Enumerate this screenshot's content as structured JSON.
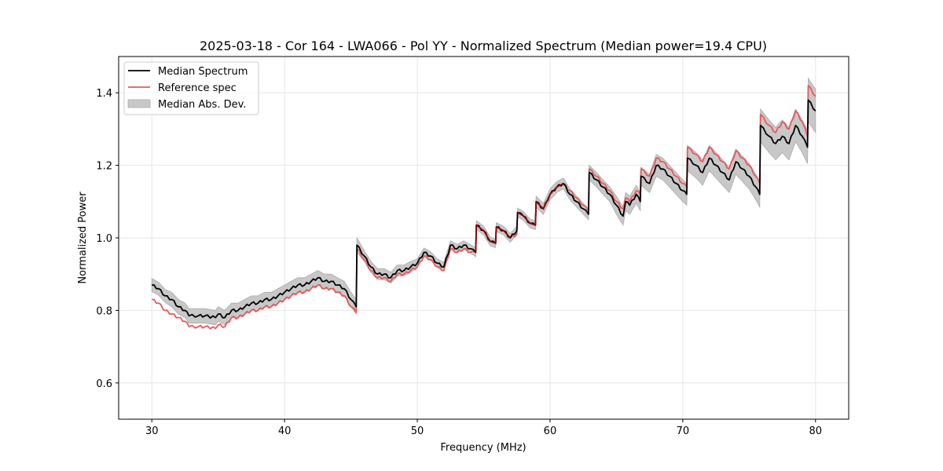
{
  "chart_data": {
    "type": "line",
    "title": "2025-03-18 - Cor 164 - LWA066 - Pol YY - Normalized Spectrum (Median power=19.4 CPU)",
    "xlabel": "Frequency (MHz)",
    "ylabel": "Normalized Power",
    "xlim": [
      27.5,
      82.5
    ],
    "ylim": [
      0.5,
      1.5
    ],
    "xticks": [
      30,
      40,
      50,
      60,
      70,
      80
    ],
    "xtick_labels": [
      "30",
      "40",
      "50",
      "60",
      "70",
      "80"
    ],
    "yticks": [
      0.6,
      0.8,
      1.0,
      1.2,
      1.4
    ],
    "ytick_labels": [
      "0.6",
      "0.8",
      "1.0",
      "1.2",
      "1.4"
    ],
    "grid": true,
    "legend_position": "top-left",
    "legend": [
      {
        "label": "Median Spectrum",
        "kind": "line",
        "color": "#000000"
      },
      {
        "label": "Reference spec",
        "kind": "line",
        "color": "#e8585a"
      },
      {
        "label": "Median Abs. Dev.",
        "kind": "band",
        "color": "#c8c8c8"
      }
    ],
    "series": [
      {
        "name": "Median Spectrum",
        "color": "#000000",
        "x": [
          30.0,
          30.5,
          31.0,
          31.5,
          32.0,
          32.5,
          32.8,
          33.5,
          34.0,
          34.8,
          35.0,
          35.5,
          36.0,
          36.5,
          37.0,
          37.5,
          38.0,
          38.5,
          39.0,
          39.5,
          40.0,
          40.5,
          41.0,
          41.5,
          42.0,
          42.5,
          43.0,
          43.5,
          44.0,
          44.5,
          45.0,
          45.4,
          45.45,
          46.0,
          46.5,
          47.0,
          47.5,
          48.0,
          48.5,
          49.0,
          49.5,
          50.0,
          50.5,
          51.0,
          51.5,
          52.0,
          52.5,
          53.0,
          53.5,
          54.0,
          54.4,
          54.45,
          55.0,
          55.5,
          55.9,
          55.95,
          56.5,
          57.0,
          57.5,
          57.55,
          58.0,
          58.5,
          58.9,
          58.95,
          59.5,
          60.0,
          60.5,
          61.0,
          61.5,
          62.0,
          62.5,
          62.9,
          62.95,
          63.5,
          64.0,
          64.5,
          65.0,
          65.5,
          65.7,
          66.0,
          66.5,
          66.8,
          66.85,
          67.5,
          68.0,
          68.5,
          69.0,
          69.5,
          70.0,
          70.3,
          70.35,
          71.0,
          71.5,
          72.0,
          72.5,
          73.0,
          73.5,
          74.0,
          74.5,
          75.0,
          75.5,
          75.8,
          75.85,
          76.5,
          77.0,
          77.5,
          78.0,
          78.5,
          79.0,
          79.4,
          79.45,
          80.0
        ],
        "y": [
          0.87,
          0.86,
          0.84,
          0.83,
          0.81,
          0.8,
          0.785,
          0.785,
          0.785,
          0.78,
          0.79,
          0.78,
          0.8,
          0.8,
          0.81,
          0.82,
          0.82,
          0.83,
          0.83,
          0.84,
          0.85,
          0.86,
          0.87,
          0.87,
          0.88,
          0.89,
          0.88,
          0.88,
          0.87,
          0.86,
          0.83,
          0.81,
          0.98,
          0.95,
          0.92,
          0.9,
          0.9,
          0.89,
          0.91,
          0.91,
          0.92,
          0.93,
          0.96,
          0.95,
          0.93,
          0.92,
          0.98,
          0.97,
          0.98,
          0.97,
          0.96,
          1.035,
          1.02,
          0.99,
          0.985,
          1.03,
          1.02,
          1.0,
          1.02,
          1.07,
          1.06,
          1.04,
          1.035,
          1.1,
          1.08,
          1.12,
          1.14,
          1.15,
          1.12,
          1.1,
          1.08,
          1.065,
          1.18,
          1.16,
          1.14,
          1.12,
          1.09,
          1.06,
          1.1,
          1.09,
          1.12,
          1.1,
          1.17,
          1.15,
          1.2,
          1.19,
          1.17,
          1.15,
          1.13,
          1.12,
          1.22,
          1.2,
          1.18,
          1.22,
          1.2,
          1.18,
          1.16,
          1.21,
          1.19,
          1.17,
          1.14,
          1.12,
          1.31,
          1.28,
          1.26,
          1.28,
          1.26,
          1.31,
          1.28,
          1.25,
          1.38,
          1.35
        ]
      },
      {
        "name": "Reference spec",
        "color": "#e8585a",
        "x": [
          30.0,
          30.5,
          31.0,
          31.5,
          32.0,
          32.5,
          32.8,
          33.5,
          34.0,
          34.8,
          35.0,
          35.5,
          36.0,
          36.5,
          37.0,
          37.5,
          38.0,
          38.5,
          39.0,
          39.5,
          40.0,
          40.5,
          41.0,
          41.5,
          42.0,
          42.5,
          43.0,
          43.5,
          44.0,
          44.5,
          45.0,
          45.4,
          45.45,
          46.0,
          46.5,
          47.0,
          47.5,
          48.0,
          48.5,
          49.0,
          49.5,
          50.0,
          50.5,
          51.0,
          51.5,
          52.0,
          52.5,
          53.0,
          53.5,
          54.0,
          54.4,
          54.45,
          55.0,
          55.5,
          55.9,
          55.95,
          56.5,
          57.0,
          57.5,
          57.55,
          58.0,
          58.5,
          58.9,
          58.95,
          59.5,
          60.0,
          60.5,
          61.0,
          61.5,
          62.0,
          62.5,
          62.9,
          62.95,
          63.5,
          64.0,
          64.5,
          65.0,
          65.5,
          65.7,
          66.0,
          66.5,
          66.8,
          66.85,
          67.5,
          68.0,
          68.5,
          69.0,
          69.5,
          70.0,
          70.3,
          70.35,
          71.0,
          71.5,
          72.0,
          72.5,
          73.0,
          73.5,
          74.0,
          74.5,
          75.0,
          75.5,
          75.8,
          75.85,
          76.5,
          77.0,
          77.5,
          78.0,
          78.5,
          79.0,
          79.4,
          79.45,
          80.0
        ],
        "y": [
          0.83,
          0.82,
          0.8,
          0.79,
          0.78,
          0.77,
          0.755,
          0.755,
          0.755,
          0.75,
          0.76,
          0.755,
          0.78,
          0.78,
          0.79,
          0.8,
          0.8,
          0.81,
          0.81,
          0.82,
          0.83,
          0.84,
          0.85,
          0.85,
          0.86,
          0.87,
          0.86,
          0.86,
          0.85,
          0.84,
          0.81,
          0.795,
          0.97,
          0.94,
          0.91,
          0.89,
          0.89,
          0.88,
          0.9,
          0.9,
          0.91,
          0.92,
          0.95,
          0.94,
          0.92,
          0.91,
          0.97,
          0.96,
          0.97,
          0.96,
          0.96,
          1.035,
          1.02,
          0.99,
          0.985,
          1.03,
          1.02,
          1.0,
          1.01,
          1.07,
          1.06,
          1.04,
          1.035,
          1.1,
          1.08,
          1.12,
          1.14,
          1.15,
          1.13,
          1.11,
          1.09,
          1.075,
          1.19,
          1.17,
          1.15,
          1.13,
          1.1,
          1.08,
          1.11,
          1.1,
          1.13,
          1.12,
          1.19,
          1.17,
          1.22,
          1.21,
          1.19,
          1.17,
          1.15,
          1.14,
          1.25,
          1.23,
          1.21,
          1.25,
          1.23,
          1.21,
          1.19,
          1.24,
          1.22,
          1.2,
          1.17,
          1.15,
          1.34,
          1.31,
          1.29,
          1.32,
          1.3,
          1.35,
          1.32,
          1.28,
          1.42,
          1.39
        ]
      }
    ],
    "band": {
      "name": "Median Abs. Dev.",
      "color": "#c8c8c8",
      "half_width": [
        0.018,
        0.018,
        0.018,
        0.02,
        0.02,
        0.02,
        0.02,
        0.02,
        0.02,
        0.02,
        0.02,
        0.02,
        0.02,
        0.02,
        0.02,
        0.02,
        0.02,
        0.02,
        0.02,
        0.02,
        0.02,
        0.02,
        0.02,
        0.02,
        0.02,
        0.02,
        0.02,
        0.02,
        0.02,
        0.02,
        0.02,
        0.02,
        0.02,
        0.015,
        0.015,
        0.015,
        0.015,
        0.015,
        0.015,
        0.015,
        0.015,
        0.012,
        0.012,
        0.012,
        0.012,
        0.012,
        0.012,
        0.012,
        0.012,
        0.012,
        0.012,
        0.012,
        0.012,
        0.012,
        0.012,
        0.012,
        0.012,
        0.012,
        0.012,
        0.012,
        0.012,
        0.012,
        0.012,
        0.015,
        0.015,
        0.015,
        0.015,
        0.015,
        0.015,
        0.015,
        0.015,
        0.015,
        0.02,
        0.02,
        0.02,
        0.02,
        0.025,
        0.025,
        0.025,
        0.025,
        0.025,
        0.025,
        0.025,
        0.025,
        0.03,
        0.03,
        0.03,
        0.03,
        0.03,
        0.03,
        0.035,
        0.035,
        0.035,
        0.035,
        0.035,
        0.035,
        0.035,
        0.035,
        0.035,
        0.035,
        0.035,
        0.035,
        0.045,
        0.045,
        0.045,
        0.045,
        0.045,
        0.045,
        0.045,
        0.045,
        0.06,
        0.06
      ]
    }
  }
}
